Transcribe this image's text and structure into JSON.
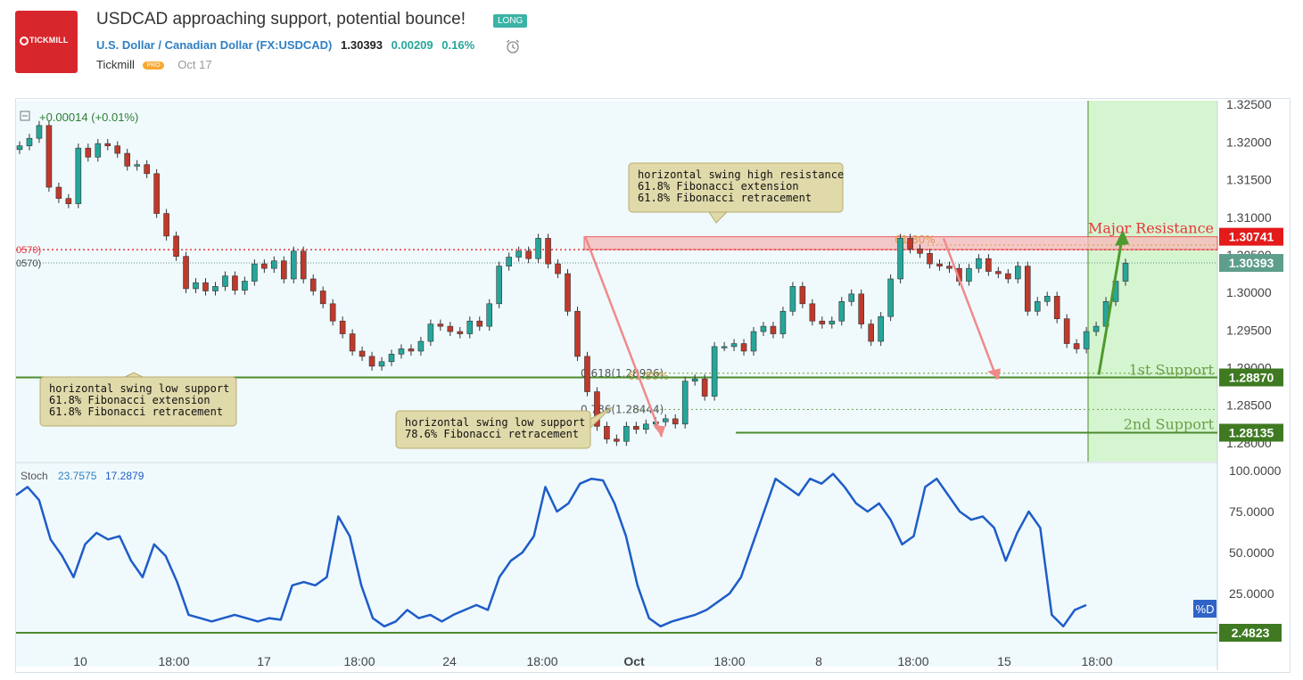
{
  "header": {
    "logo_text": "TICKMILL",
    "title": "USDCAD approaching support, potential bounce!",
    "badge": "LONG",
    "symbol_name": "U.S. Dollar / Canadian Dollar",
    "symbol_code": "(FX:USDCAD)",
    "price": "1.30393",
    "change": "0.00209",
    "change_pct": "0.16%",
    "author": "Tickmill",
    "author_badge": "PRO",
    "date": "Oct 17"
  },
  "colors": {
    "background": "#f0fafd",
    "up": "#26a69a",
    "down": "#c0392b",
    "resistance": "#e8353a",
    "support": "#4e8a2f",
    "stoch": "#1e5cc8",
    "projection_zone": "#d5f5d0",
    "arrow_down": "#f08a8a",
    "arrow_up": "#4e9a2f"
  },
  "chart_data": {
    "type": "candlestick",
    "title": "USDCAD",
    "price_axis": {
      "ylim": [
        1.2775,
        1.3255
      ],
      "ticks": [
        "1.32500",
        "1.32000",
        "1.31500",
        "1.31000",
        "1.30500",
        "1.30000",
        "1.29500",
        "1.29000",
        "1.28500",
        "1.28000"
      ]
    },
    "x_ticks": [
      "10",
      "18:00",
      "17",
      "18:00",
      "24",
      "18:00",
      "Oct",
      "18:00",
      "8",
      "18:00",
      "15",
      "18:00"
    ],
    "legend_change": "+0.00014 (+0.01%)",
    "close_path": [
      1.3195,
      1.3205,
      1.3222,
      1.314,
      1.3125,
      1.3118,
      1.3192,
      1.318,
      1.3198,
      1.3195,
      1.3185,
      1.3168,
      1.317,
      1.3158,
      1.3105,
      1.3075,
      1.3048,
      1.3005,
      1.3013,
      1.3002,
      1.3008,
      1.3022,
      1.3003,
      1.3015,
      1.3038,
      1.3032,
      1.3042,
      1.3018,
      1.3055,
      1.3018,
      1.3002,
      1.2985,
      1.2962,
      1.2945,
      1.2922,
      1.2915,
      1.2902,
      1.2908,
      1.2918,
      1.2925,
      1.2922,
      1.2935,
      1.2958,
      1.2955,
      1.2948,
      1.2945,
      1.2962,
      1.2955,
      1.2985,
      1.3035,
      1.3047,
      1.3055,
      1.3045,
      1.3072,
      1.3038,
      1.3025,
      1.2975,
      1.2915,
      1.2868,
      1.2822,
      1.2805,
      1.2802,
      1.2822,
      1.2818,
      1.2825,
      1.2828,
      1.2832,
      1.2825,
      1.2882,
      1.2885,
      1.2862,
      1.2928,
      1.2928,
      1.2932,
      1.2922,
      1.2948,
      1.2955,
      1.2945,
      1.2975,
      1.3008,
      1.2985,
      1.2962,
      1.2958,
      1.2962,
      1.2988,
      1.2998,
      1.2958,
      1.2935,
      1.2968,
      1.3018,
      1.3072,
      1.3058,
      1.3052,
      1.3038,
      1.3035,
      1.3032,
      1.3015,
      1.3032,
      1.3045,
      1.3028,
      1.3025,
      1.3018,
      1.3035,
      1.2975,
      1.2988,
      1.2995,
      1.2965,
      1.2932,
      1.2925,
      1.2948,
      1.2955,
      1.2988,
      1.3015,
      1.3039
    ],
    "levels": {
      "major_resistance": {
        "label": "Major Resistance",
        "price": "1.30741",
        "value": 1.30741
      },
      "resistance_lower": {
        "label": "0570)",
        "value": 1.3057
      },
      "current": {
        "label": "1.30393",
        "value": 1.30393
      },
      "support_1": {
        "label": "1st Support",
        "price": "1.28870",
        "value": 1.2887
      },
      "support_2": {
        "label": "2nd Support",
        "price": "1.28135",
        "value": 1.28135
      }
    },
    "fib_labels": {
      "fib_618_left": "0.618(1.28926)",
      "fib_618_overlap": "61.80%",
      "fib_786": "0.786(1.28444)",
      "fib_618_resistance": "61.80%"
    },
    "annotations": [
      {
        "lines": [
          "horizontal swing high resistance",
          "61.8% Fibonacci extension",
          "61.8% Fibonacci retracement"
        ]
      },
      {
        "lines": [
          "horizontal swing low support",
          "61.8% Fibonacci extension",
          "61.8% Fibonacci retracement"
        ]
      },
      {
        "lines": [
          "horizontal swing low support",
          "78.6% Fibonacci retracement"
        ]
      }
    ],
    "stochastic": {
      "name": "Stoch",
      "k_value": "23.7575",
      "d_value": "17.2879",
      "ylim": [
        0,
        100
      ],
      "ticks": [
        "100.0000",
        "75.0000",
        "50.0000",
        "25.0000"
      ],
      "d_badge": "%D",
      "support_label": "2.4823",
      "support_value": 2.4823,
      "values": [
        85,
        90,
        82,
        58,
        48,
        35,
        55,
        62,
        58,
        60,
        45,
        35,
        55,
        48,
        32,
        12,
        10,
        8,
        10,
        12,
        10,
        8,
        10,
        9,
        30,
        32,
        30,
        35,
        72,
        60,
        30,
        10,
        5,
        8,
        15,
        10,
        12,
        8,
        12,
        15,
        18,
        15,
        35,
        45,
        50,
        60,
        90,
        75,
        80,
        92,
        95,
        94,
        80,
        60,
        30,
        10,
        5,
        8,
        10,
        12,
        15,
        20,
        25,
        35,
        55,
        75,
        95,
        90,
        85,
        95,
        92,
        98,
        90,
        80,
        75,
        80,
        70,
        55,
        60,
        90,
        95,
        85,
        75,
        70,
        72,
        65,
        45,
        62,
        75,
        65,
        12,
        5,
        15,
        18
      ]
    }
  }
}
